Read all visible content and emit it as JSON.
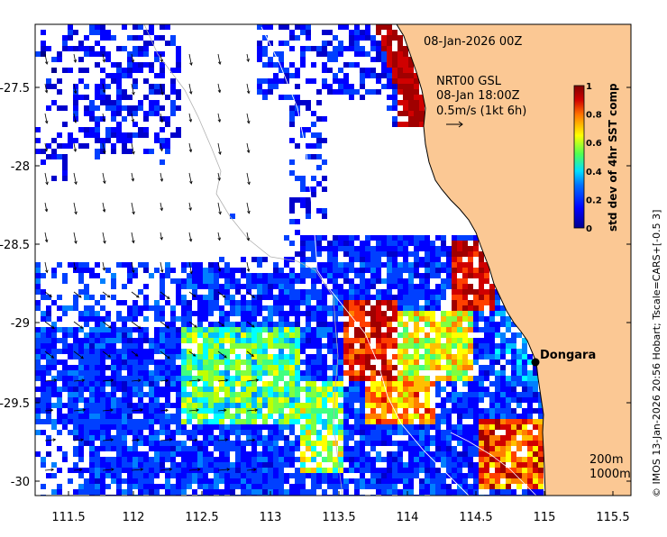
{
  "map": {
    "date_title": "08-Jan-2026 00Z",
    "current_source": "NRT00 GSL",
    "current_time": "08-Jan 18:00Z",
    "scale_label": "0.5m/s (1kt 6h)",
    "place_label": "Dongara",
    "depth_contours": [
      "200m",
      "1000m"
    ],
    "credit": "© IMOS 13-Jan-2026 20:56 Hobart; Tscale=CARS+[-0.5 3]",
    "x_ticks": [
      "111.5",
      "112",
      "112.5",
      "113",
      "113.5",
      "114",
      "114.5",
      "115",
      "115.5"
    ],
    "y_ticks": [
      "-27.5",
      "-28",
      "-28.5",
      "-29",
      "-29.5",
      "-30"
    ],
    "colorbar": {
      "label": "std dev of 4hr SST comp",
      "ticks": [
        "0",
        "0.2",
        "0.4",
        "0.6",
        "0.8",
        "1"
      ],
      "range": [
        0,
        1
      ]
    },
    "colors": {
      "land": "#fbc894",
      "coast": "#000000",
      "cb_0": "#00008f",
      "cb_1": "#0050ff",
      "cb_2": "#00dfff",
      "cb_3": "#50ff50",
      "cb_4": "#ffff00",
      "cb_5": "#ff7000",
      "cb_6": "#bf0000",
      "cb_7": "#800000"
    }
  }
}
